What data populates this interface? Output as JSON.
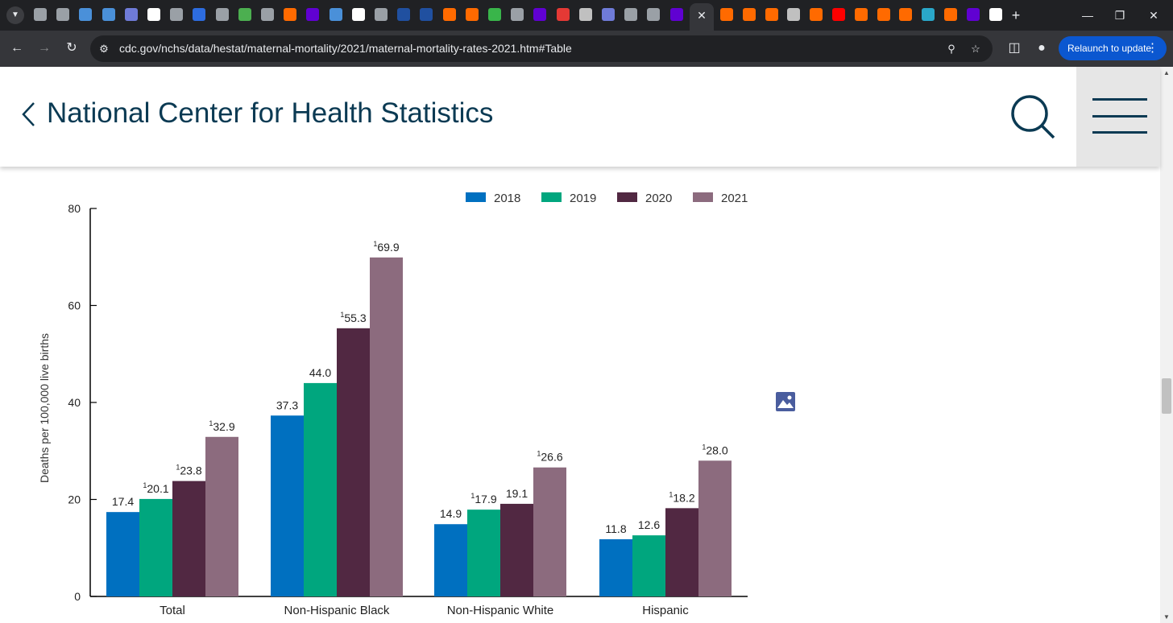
{
  "browser": {
    "address_bar": {
      "url": "cdc.gov/nchs/data/hestat/maternal-mortality/2021/maternal-mortality-rates-2021.htm#Table"
    },
    "relaunch_label": "Relaunch to update",
    "tab_icons": [
      {
        "icon": "globe-icon",
        "color": "#9aa0a6"
      },
      {
        "icon": "globe-icon",
        "color": "#9aa0a6"
      },
      {
        "icon": "shield-icon",
        "color": "#4a90d9"
      },
      {
        "icon": "shield-icon",
        "color": "#4a90d9"
      },
      {
        "icon": "play-arrow-icon",
        "color": "#6f7bd8"
      },
      {
        "icon": "bi-icon",
        "color": "#ffffff"
      },
      {
        "icon": "globe-icon",
        "color": "#9aa0a6"
      },
      {
        "icon": "search-icon",
        "color": "#2d6cdf"
      },
      {
        "icon": "globe-icon",
        "color": "#9aa0a6"
      },
      {
        "icon": "play-icon",
        "color": "#4caf50"
      },
      {
        "icon": "globe-icon",
        "color": "#9aa0a6"
      },
      {
        "icon": "bookmark-icon",
        "color": "#ff6a00"
      },
      {
        "icon": "yahoo-icon",
        "color": "#6001d2"
      },
      {
        "icon": "shield-icon",
        "color": "#4a90d9"
      },
      {
        "icon": "bi-icon",
        "color": "#ffffff"
      },
      {
        "icon": "globe-icon",
        "color": "#9aa0a6"
      },
      {
        "icon": "cube-icon",
        "color": "#2050a0"
      },
      {
        "icon": "cube-icon",
        "color": "#2050a0"
      },
      {
        "icon": "shield-icon",
        "color": "#ff6a00"
      },
      {
        "icon": "shield-icon",
        "color": "#ff6a00"
      },
      {
        "icon": "g-icon",
        "color": "#39b54a"
      },
      {
        "icon": "globe-icon",
        "color": "#9aa0a6"
      },
      {
        "icon": "yahoo-icon",
        "color": "#6001d2"
      },
      {
        "icon": "download-icon",
        "color": "#e53935"
      },
      {
        "icon": "text-icon",
        "color": "#c0c0c0"
      },
      {
        "icon": "play-arrow-icon",
        "color": "#6f7bd8"
      },
      {
        "icon": "globe-icon",
        "color": "#9aa0a6"
      },
      {
        "icon": "globe-icon",
        "color": "#9aa0a6"
      },
      {
        "icon": "yahoo-icon",
        "color": "#6001d2"
      }
    ],
    "tab_icons_right": [
      {
        "icon": "bookmark-icon",
        "color": "#ff6a00"
      },
      {
        "icon": "bookmark-icon",
        "color": "#ff6a00"
      },
      {
        "icon": "bookmark-icon",
        "color": "#ff6a00"
      },
      {
        "icon": "text-icon",
        "color": "#c0c0c0"
      },
      {
        "icon": "bookmark-icon",
        "color": "#ff6a00"
      },
      {
        "icon": "youtube-icon",
        "color": "#ff0000"
      },
      {
        "icon": "bookmark-icon",
        "color": "#ff6a00"
      },
      {
        "icon": "bookmark-icon",
        "color": "#ff6a00"
      },
      {
        "icon": "bookmark-icon",
        "color": "#ff6a00"
      },
      {
        "icon": "cloud-icon",
        "color": "#2aa7c9"
      },
      {
        "icon": "bookmark-icon",
        "color": "#ff6a00"
      },
      {
        "icon": "yahoo-icon",
        "color": "#6001d2"
      },
      {
        "icon": "chart-icon",
        "color": "#ffffff"
      }
    ]
  },
  "header": {
    "title": "National Center for Health Statistics"
  },
  "chart_data": {
    "type": "bar",
    "categories": [
      "Total",
      "Non-Hispanic Black",
      "Non-Hispanic White",
      "Hispanic"
    ],
    "series": [
      {
        "name": "2018",
        "color": "#0070c0",
        "values": [
          17.4,
          37.3,
          14.9,
          11.8
        ],
        "labels": [
          "17.4",
          "37.3",
          "14.9",
          "11.8"
        ],
        "superscript": [
          false,
          false,
          false,
          false
        ]
      },
      {
        "name": "2019",
        "color": "#00a67e",
        "values": [
          20.1,
          44.0,
          17.9,
          12.6
        ],
        "labels": [
          "20.1",
          "44.0",
          "17.9",
          "12.6"
        ],
        "superscript": [
          true,
          false,
          true,
          false
        ]
      },
      {
        "name": "2020",
        "color": "#512842",
        "values": [
          23.8,
          55.3,
          19.1,
          18.2
        ],
        "labels": [
          "23.8",
          "55.3",
          "19.1",
          "18.2"
        ],
        "superscript": [
          true,
          true,
          false,
          true
        ]
      },
      {
        "name": "2021",
        "color": "#8c6b7e",
        "values": [
          32.9,
          69.9,
          26.6,
          28.0
        ],
        "labels": [
          "32.9",
          "69.9",
          "26.6",
          "28.0"
        ],
        "superscript": [
          true,
          true,
          true,
          true
        ]
      }
    ],
    "superscript_mark": "1",
    "ylabel": "Deaths per 100,000 live births",
    "ylim": [
      0,
      80
    ],
    "yticks": [
      0,
      20,
      40,
      60,
      80
    ],
    "legend": "top"
  }
}
